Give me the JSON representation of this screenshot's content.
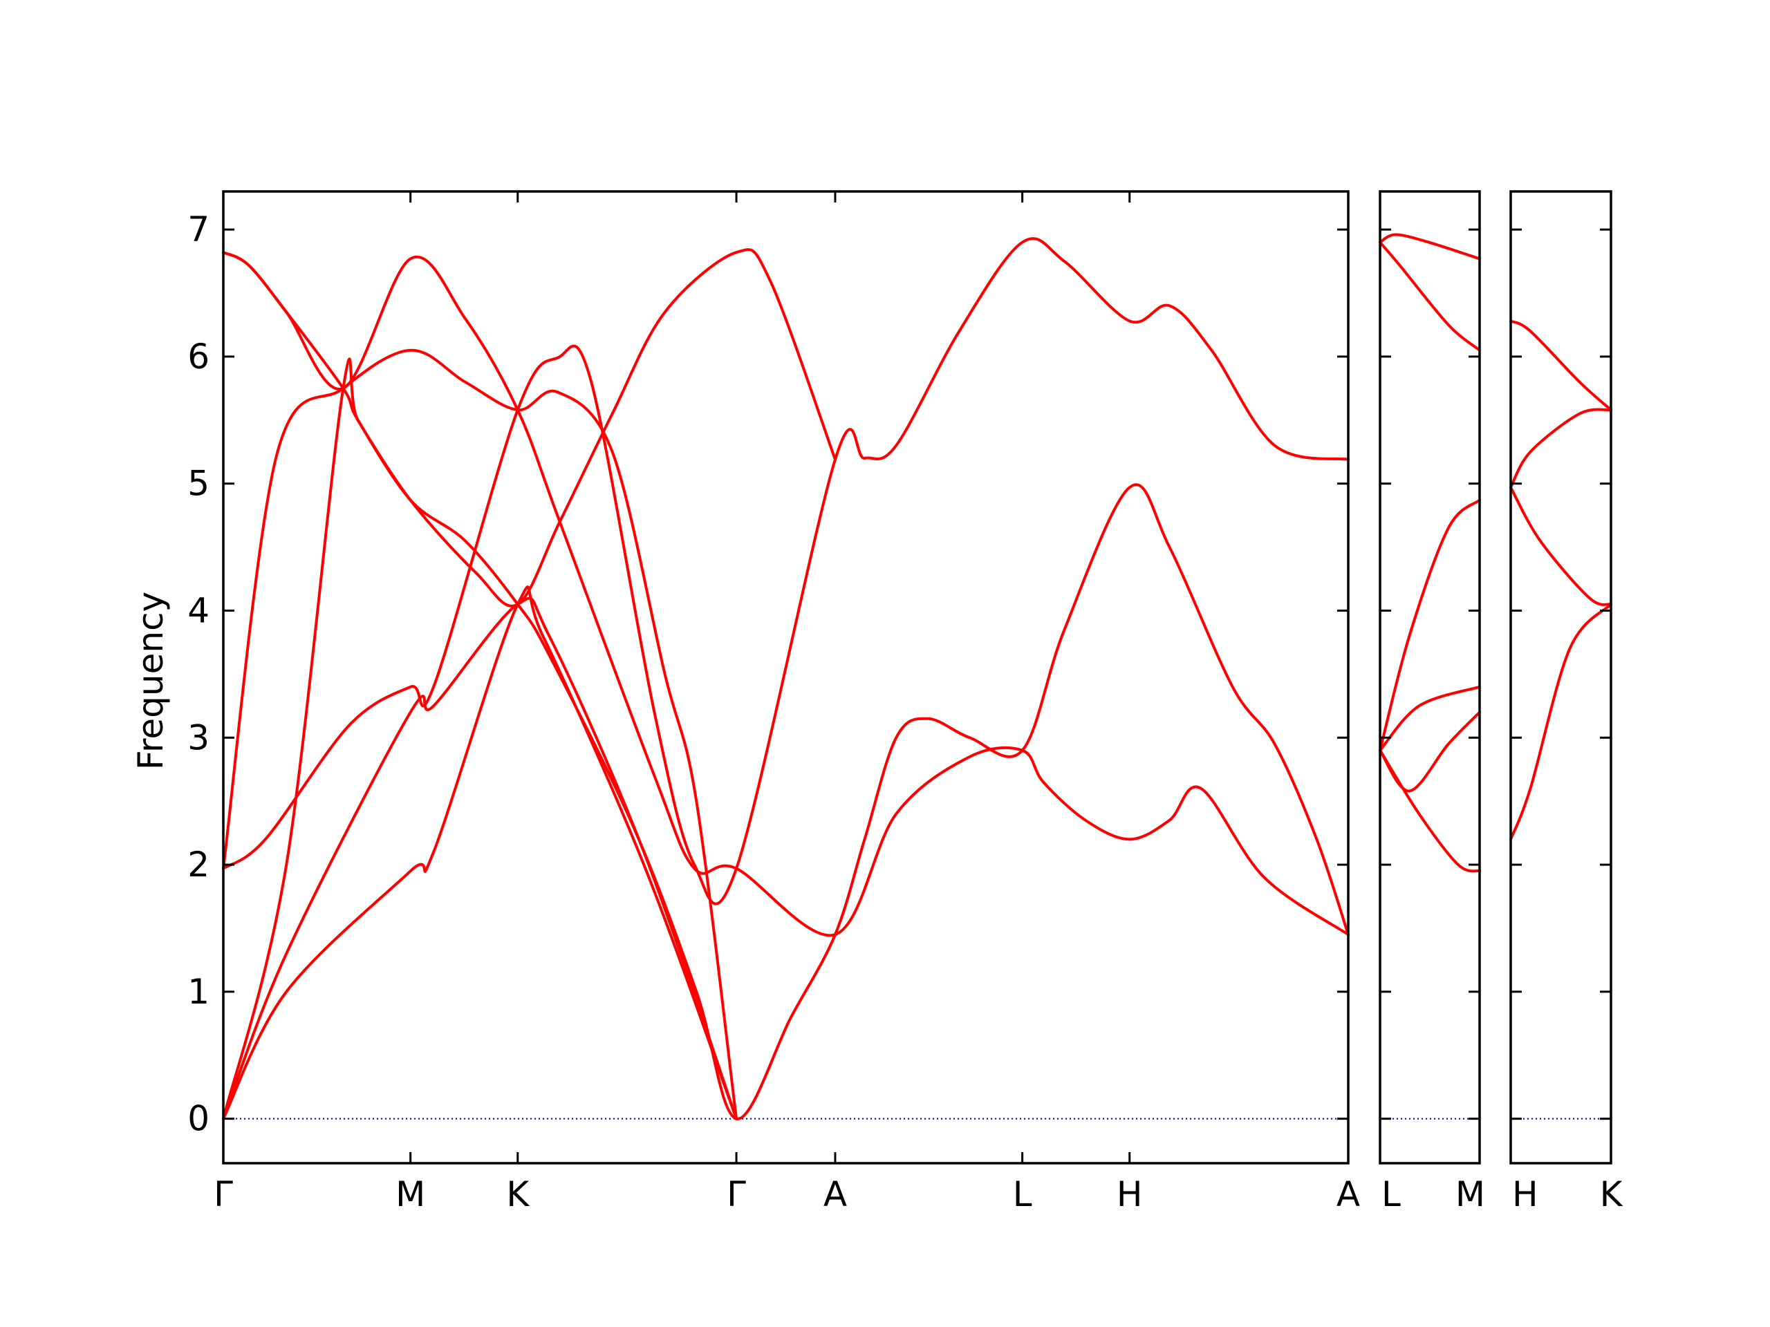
{
  "chart_data": {
    "type": "line",
    "ylabel": "Frequency",
    "ylim": [
      -0.35,
      7.3
    ],
    "yticks": [
      0,
      1,
      2,
      3,
      4,
      5,
      6,
      7
    ],
    "colors": {
      "bands": "#ff0000",
      "zero_line": "#0000ff"
    },
    "panels": [
      {
        "xlim": [
          0,
          5.35
        ],
        "high_symmetry_points": [
          {
            "label": "Γ",
            "x": 0
          },
          {
            "label": "M",
            "x": 0.89
          },
          {
            "label": "K",
            "x": 1.4
          },
          {
            "label": "Γ",
            "x": 2.44
          },
          {
            "label": "A",
            "x": 2.91
          },
          {
            "label": "L",
            "x": 3.8
          },
          {
            "label": "H",
            "x": 4.31
          },
          {
            "label": "A",
            "x": 5.35
          }
        ],
        "branches": [
          [
            [
              0,
              6.82
            ],
            [
              0.12,
              6.72
            ],
            [
              0.3,
              6.35
            ],
            [
              0.57,
              5.75
            ],
            [
              0.89,
              6.77
            ],
            [
              1.15,
              6.3
            ],
            [
              1.4,
              5.58
            ],
            [
              1.6,
              4.7
            ],
            [
              2.05,
              2.7
            ],
            [
              2.24,
              1.97
            ],
            [
              2.44,
              1.97
            ],
            [
              2.91,
              1.45
            ],
            [
              3.2,
              2.4
            ],
            [
              3.55,
              2.85
            ],
            [
              3.8,
              2.9
            ],
            [
              3.9,
              2.65
            ],
            [
              4.1,
              2.35
            ],
            [
              4.31,
              2.2
            ],
            [
              4.5,
              2.35
            ],
            [
              4.65,
              2.6
            ],
            [
              4.95,
              1.9
            ],
            [
              5.35,
              1.45
            ]
          ],
          [
            [
              0,
              6.82
            ],
            [
              0.12,
              6.72
            ],
            [
              0.3,
              6.35
            ],
            [
              0.57,
              5.75
            ],
            [
              0.64,
              5.5
            ],
            [
              0.89,
              4.87
            ],
            [
              1.15,
              4.55
            ],
            [
              1.4,
              4.05
            ],
            [
              1.55,
              3.65
            ],
            [
              1.95,
              2.3
            ],
            [
              2.25,
              1.0
            ],
            [
              2.44,
              0.0
            ],
            [
              2.7,
              0.8
            ],
            [
              2.91,
              1.45
            ],
            [
              3.05,
              2.2
            ],
            [
              3.2,
              3.0
            ],
            [
              3.35,
              3.15
            ],
            [
              3.55,
              3.0
            ],
            [
              3.8,
              2.9
            ],
            [
              4.0,
              3.85
            ],
            [
              4.31,
              4.97
            ],
            [
              4.5,
              4.5
            ],
            [
              4.8,
              3.4
            ],
            [
              5.0,
              2.95
            ],
            [
              5.2,
              2.2
            ],
            [
              5.35,
              1.45
            ]
          ],
          [
            [
              0,
              1.97
            ],
            [
              0.2,
              2.2
            ],
            [
              0.6,
              3.1
            ],
            [
              0.89,
              3.4
            ],
            [
              1.0,
              3.4
            ],
            [
              1.4,
              5.58
            ],
            [
              1.59,
              5.99
            ],
            [
              1.75,
              5.8
            ],
            [
              2.05,
              3.2
            ],
            [
              2.24,
              2.0
            ],
            [
              2.44,
              1.97
            ],
            [
              2.91,
              5.19
            ],
            [
              3.05,
              5.2
            ],
            [
              3.2,
              5.3
            ],
            [
              3.5,
              6.2
            ],
            [
              3.8,
              6.9
            ],
            [
              4.0,
              6.75
            ],
            [
              4.31,
              6.28
            ],
            [
              4.5,
              6.4
            ],
            [
              4.7,
              6.05
            ],
            [
              5.0,
              5.3
            ],
            [
              5.35,
              5.19
            ]
          ],
          [
            [
              0,
              1.97
            ],
            [
              0.25,
              5.2
            ],
            [
              0.57,
              5.75
            ],
            [
              0.89,
              6.05
            ],
            [
              1.15,
              5.8
            ],
            [
              1.4,
              5.58
            ],
            [
              1.59,
              5.72
            ],
            [
              1.85,
              5.25
            ],
            [
              2.1,
              3.5
            ],
            [
              2.25,
              2.5
            ],
            [
              2.44,
              0.0
            ]
          ],
          [
            [
              0,
              0.0
            ],
            [
              0.3,
              2.0
            ],
            [
              0.57,
              5.75
            ],
            [
              0.64,
              5.5
            ],
            [
              0.89,
              4.87
            ],
            [
              1.2,
              4.3
            ],
            [
              1.4,
              4.05
            ],
            [
              1.6,
              4.7
            ],
            [
              1.85,
              5.55
            ],
            [
              2.1,
              6.35
            ],
            [
              2.44,
              6.82
            ],
            [
              2.6,
              6.6
            ],
            [
              2.91,
              5.19
            ]
          ],
          [
            [
              0,
              0.0
            ],
            [
              0.3,
              1.3
            ],
            [
              0.89,
              3.2
            ],
            [
              1.0,
              3.25
            ],
            [
              1.4,
              4.05
            ],
            [
              1.55,
              3.8
            ],
            [
              2.0,
              2.1
            ],
            [
              2.44,
              0.0
            ]
          ],
          [
            [
              0,
              0.0
            ],
            [
              0.3,
              1.0
            ],
            [
              0.89,
              1.95
            ],
            [
              1.0,
              2.1
            ],
            [
              1.4,
              4.05
            ],
            [
              1.52,
              3.8
            ],
            [
              2.0,
              2.0
            ],
            [
              2.44,
              0.0
            ]
          ]
        ]
      },
      {
        "xlim": [
          0,
          0.51
        ],
        "high_symmetry_points": [
          {
            "label": "L",
            "x": 0
          },
          {
            "label": "M",
            "x": 0.51
          }
        ],
        "branches": [
          [
            [
              0,
              6.9
            ],
            [
              0.08,
              6.96
            ],
            [
              0.25,
              6.9
            ],
            [
              0.51,
              6.77
            ]
          ],
          [
            [
              0,
              6.9
            ],
            [
              0.1,
              6.72
            ],
            [
              0.35,
              6.25
            ],
            [
              0.51,
              6.05
            ]
          ],
          [
            [
              0,
              2.9
            ],
            [
              0.15,
              3.8
            ],
            [
              0.35,
              4.65
            ],
            [
              0.51,
              4.87
            ]
          ],
          [
            [
              0,
              2.9
            ],
            [
              0.2,
              3.25
            ],
            [
              0.51,
              3.4
            ]
          ],
          [
            [
              0,
              2.9
            ],
            [
              0.15,
              2.58
            ],
            [
              0.35,
              2.95
            ],
            [
              0.51,
              3.2
            ]
          ],
          [
            [
              0,
              2.9
            ],
            [
              0.2,
              2.4
            ],
            [
              0.4,
              2.0
            ],
            [
              0.51,
              1.95
            ]
          ]
        ]
      },
      {
        "xlim": [
          0,
          0.51
        ],
        "high_symmetry_points": [
          {
            "label": "H",
            "x": 0
          },
          {
            "label": "K",
            "x": 0.51
          }
        ],
        "branches": [
          [
            [
              0,
              6.28
            ],
            [
              0.1,
              6.2
            ],
            [
              0.35,
              5.8
            ],
            [
              0.51,
              5.58
            ]
          ],
          [
            [
              0,
              4.97
            ],
            [
              0.1,
              5.25
            ],
            [
              0.35,
              5.55
            ],
            [
              0.51,
              5.58
            ]
          ],
          [
            [
              0,
              4.97
            ],
            [
              0.15,
              4.55
            ],
            [
              0.4,
              4.1
            ],
            [
              0.51,
              4.05
            ]
          ],
          [
            [
              0,
              2.2
            ],
            [
              0.1,
              2.6
            ],
            [
              0.3,
              3.7
            ],
            [
              0.51,
              4.05
            ]
          ]
        ]
      }
    ]
  }
}
